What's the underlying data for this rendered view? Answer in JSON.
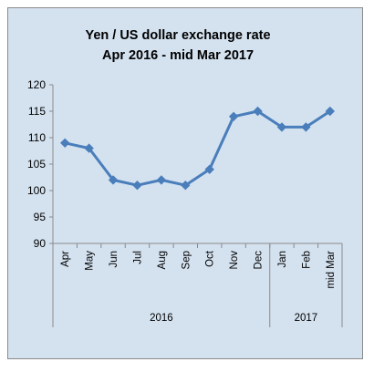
{
  "chart_data": {
    "type": "line",
    "title_lines": [
      "Yen / US dollar exchange rate",
      "Apr 2016 - mid Mar 2017"
    ],
    "categories": [
      "Apr",
      "May",
      "Jun",
      "Jul",
      "Aug",
      "Sep",
      "Oct",
      "Nov",
      "Dec",
      "Jan",
      "Feb",
      "mid Mar"
    ],
    "category_groups": [
      {
        "label": "2016",
        "count": 9
      },
      {
        "label": "2017",
        "count": 3
      }
    ],
    "series": [
      {
        "values": [
          109,
          108,
          102,
          101,
          102,
          101,
          104,
          114,
          115,
          112,
          112,
          115
        ],
        "color": "#4a7ebb"
      }
    ],
    "ylim": [
      90,
      120
    ],
    "yticks": [
      90,
      95,
      100,
      105,
      110,
      115,
      120
    ],
    "grid": false,
    "legend": "none",
    "background_color": "#d4e2f0"
  }
}
